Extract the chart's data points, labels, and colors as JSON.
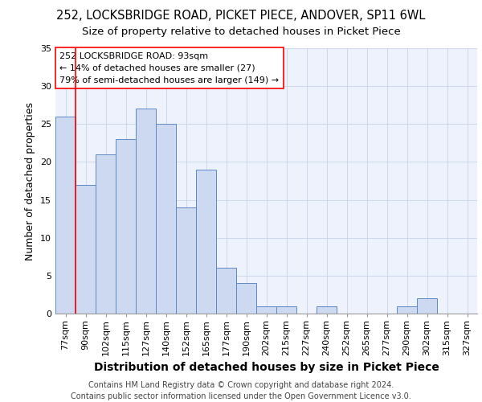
{
  "title1": "252, LOCKSBRIDGE ROAD, PICKET PIECE, ANDOVER, SP11 6WL",
  "title2": "Size of property relative to detached houses in Picket Piece",
  "xlabel": "Distribution of detached houses by size in Picket Piece",
  "ylabel": "Number of detached properties",
  "bins": [
    "77sqm",
    "90sqm",
    "102sqm",
    "115sqm",
    "127sqm",
    "140sqm",
    "152sqm",
    "165sqm",
    "177sqm",
    "190sqm",
    "202sqm",
    "215sqm",
    "227sqm",
    "240sqm",
    "252sqm",
    "265sqm",
    "277sqm",
    "290sqm",
    "302sqm",
    "315sqm",
    "327sqm"
  ],
  "values": [
    26,
    17,
    21,
    23,
    27,
    25,
    14,
    19,
    6,
    4,
    1,
    1,
    0,
    1,
    0,
    0,
    0,
    1,
    2,
    0,
    0
  ],
  "bar_color": "#ccd9f0",
  "bar_edgecolor": "#5b8ac5",
  "bar_linewidth": 0.7,
  "grid_color": "#c8d4e8",
  "background_color": "#edf2fc",
  "ylim": [
    0,
    35
  ],
  "yticks": [
    0,
    5,
    10,
    15,
    20,
    25,
    30,
    35
  ],
  "red_line_bin_index": 1,
  "annotation_text": "252 LOCKSBRIDGE ROAD: 93sqm\n← 14% of detached houses are smaller (27)\n79% of semi-detached houses are larger (149) →",
  "footer": "Contains HM Land Registry data © Crown copyright and database right 2024.\nContains public sector information licensed under the Open Government Licence v3.0.",
  "title1_fontsize": 10.5,
  "title2_fontsize": 9.5,
  "xlabel_fontsize": 10,
  "ylabel_fontsize": 9,
  "annotation_fontsize": 8,
  "footer_fontsize": 7,
  "tick_fontsize": 8
}
